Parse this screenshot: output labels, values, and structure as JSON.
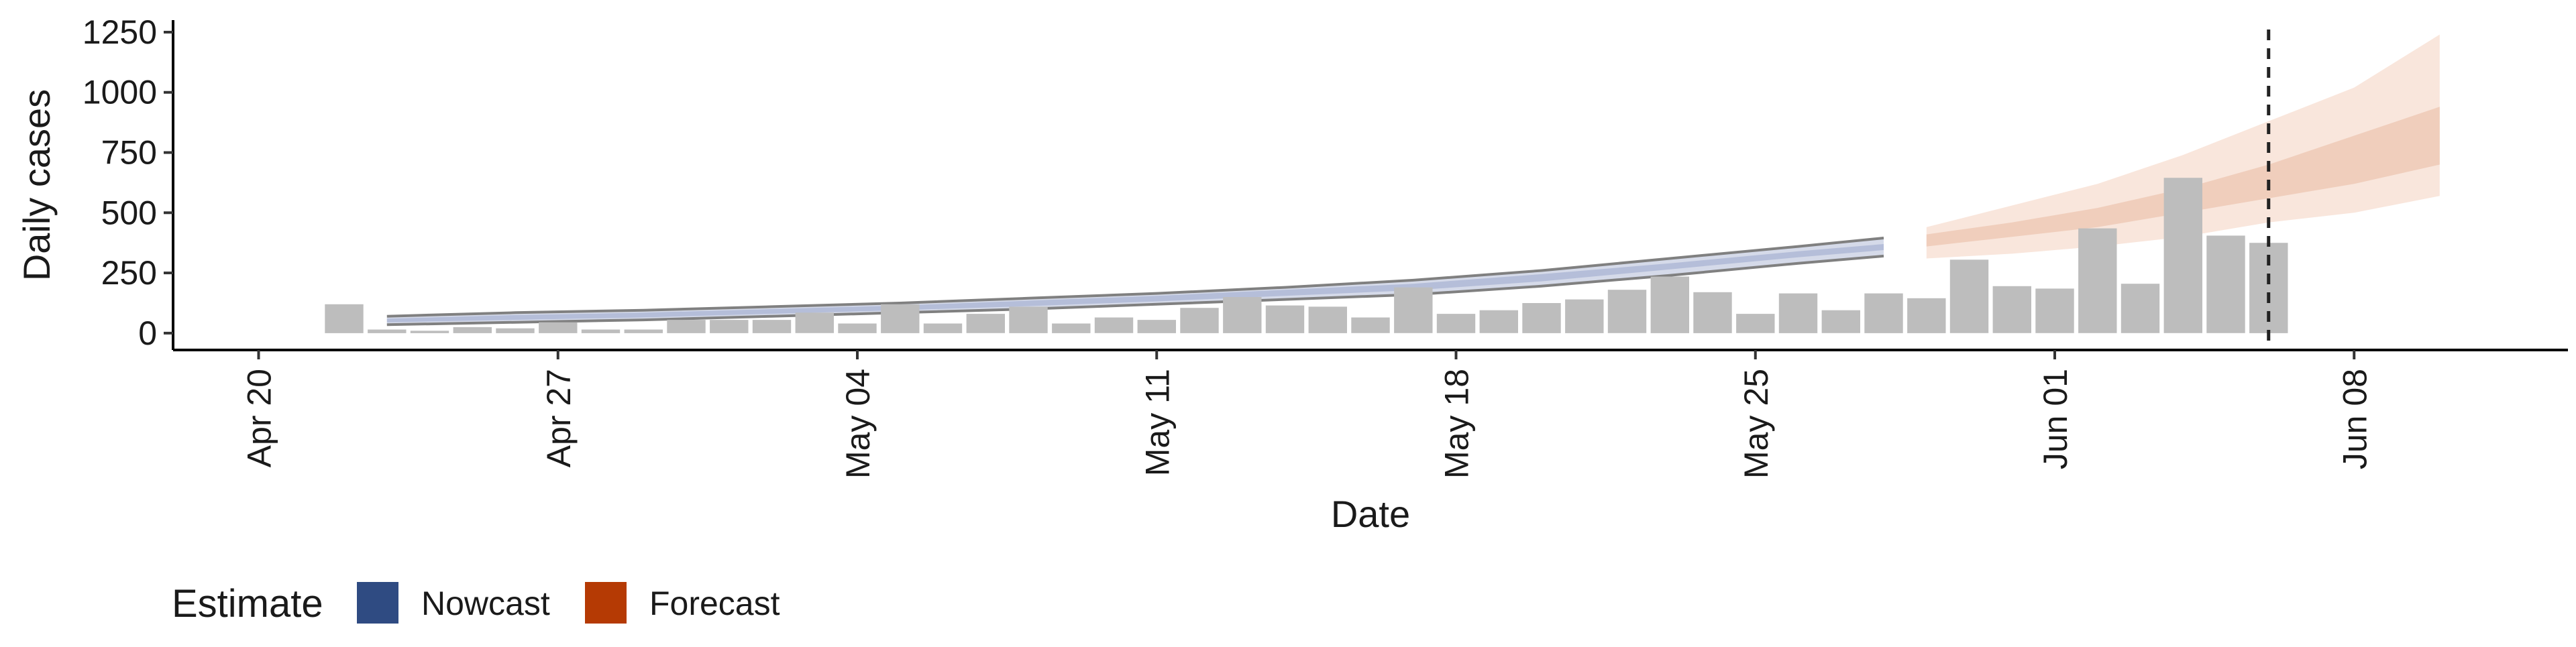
{
  "chart_data": {
    "type": "bar",
    "xlabel": "Date",
    "ylabel": "Daily cases",
    "xlim": [
      "2020-04-18",
      "2020-06-13"
    ],
    "ylim": [
      -70,
      1300
    ],
    "x_ticks": [
      "2020-04-20",
      "2020-04-27",
      "2020-05-04",
      "2020-05-11",
      "2020-05-18",
      "2020-05-25",
      "2020-06-01",
      "2020-06-08"
    ],
    "x_tick_labels": [
      "Apr 20",
      "Apr 27",
      "May 04",
      "May 11",
      "May 18",
      "May 25",
      "Jun 01",
      "Jun 08"
    ],
    "y_ticks": [
      0,
      250,
      500,
      750,
      1000,
      1250
    ],
    "y_tick_labels": [
      "0",
      "250",
      "500",
      "750",
      "1000",
      "1250"
    ],
    "grid": false,
    "legend": {
      "title": "Estimate",
      "position": "bottom-left",
      "entries": [
        {
          "label": "Nowcast",
          "color": "#2f4b82"
        },
        {
          "label": "Forecast",
          "color": "#b53a04"
        }
      ]
    },
    "reference_line": {
      "date": "2020-06-06",
      "style": "dashed",
      "color": "#222222"
    },
    "series": [
      {
        "kind": "bar",
        "color": "#bdbdbd",
        "x": [
          "2020-04-22",
          "2020-04-23",
          "2020-04-24",
          "2020-04-25",
          "2020-04-26",
          "2020-04-27",
          "2020-04-28",
          "2020-04-29",
          "2020-04-30",
          "2020-05-01",
          "2020-05-02",
          "2020-05-03",
          "2020-05-04",
          "2020-05-05",
          "2020-05-06",
          "2020-05-07",
          "2020-05-08",
          "2020-05-09",
          "2020-05-10",
          "2020-05-11",
          "2020-05-12",
          "2020-05-13",
          "2020-05-14",
          "2020-05-15",
          "2020-05-16",
          "2020-05-17",
          "2020-05-18",
          "2020-05-19",
          "2020-05-20",
          "2020-05-21",
          "2020-05-22",
          "2020-05-23",
          "2020-05-24",
          "2020-05-25",
          "2020-05-26",
          "2020-05-27",
          "2020-05-28",
          "2020-05-29",
          "2020-05-30",
          "2020-05-31",
          "2020-06-01",
          "2020-06-02",
          "2020-06-03",
          "2020-06-04",
          "2020-06-05",
          "2020-06-06"
        ],
        "values": [
          120,
          15,
          10,
          25,
          20,
          45,
          15,
          15,
          55,
          55,
          55,
          85,
          40,
          120,
          40,
          80,
          110,
          40,
          65,
          55,
          105,
          150,
          115,
          110,
          65,
          190,
          80,
          95,
          125,
          140,
          180,
          235,
          170,
          80,
          165,
          95,
          165,
          145,
          305,
          195,
          185,
          435,
          205,
          645,
          405,
          375
        ]
      },
      {
        "kind": "band",
        "estimate": "Nowcast",
        "color": "#2f4b82",
        "x": [
          "2020-04-23",
          "2020-04-26",
          "2020-04-29",
          "2020-05-02",
          "2020-05-05",
          "2020-05-08",
          "2020-05-11",
          "2020-05-14",
          "2020-05-17",
          "2020-05-20",
          "2020-05-23",
          "2020-05-26",
          "2020-05-28"
        ],
        "lower": [
          35,
          45,
          55,
          70,
          85,
          100,
          120,
          140,
          160,
          195,
          240,
          290,
          320
        ],
        "upper": [
          70,
          85,
          95,
          110,
          125,
          145,
          165,
          190,
          220,
          260,
          310,
          360,
          395
        ],
        "inner_lower": [
          45,
          55,
          65,
          80,
          95,
          112,
          132,
          155,
          178,
          215,
          265,
          315,
          345
        ],
        "inner_upper": [
          60,
          75,
          85,
          100,
          115,
          135,
          155,
          180,
          205,
          245,
          290,
          340,
          370
        ]
      },
      {
        "kind": "band",
        "estimate": "Forecast",
        "color": "#b53a04",
        "x": [
          "2020-05-29",
          "2020-05-31",
          "2020-06-02",
          "2020-06-04",
          "2020-06-06",
          "2020-06-08",
          "2020-06-10"
        ],
        "lower": [
          310,
          330,
          360,
          400,
          460,
          500,
          570
        ],
        "upper": [
          440,
          530,
          620,
          740,
          880,
          1020,
          1240
        ],
        "inner_lower": [
          360,
          400,
          440,
          500,
          560,
          620,
          700
        ],
        "inner_upper": [
          410,
          460,
          520,
          600,
          700,
          820,
          940
        ]
      }
    ]
  }
}
